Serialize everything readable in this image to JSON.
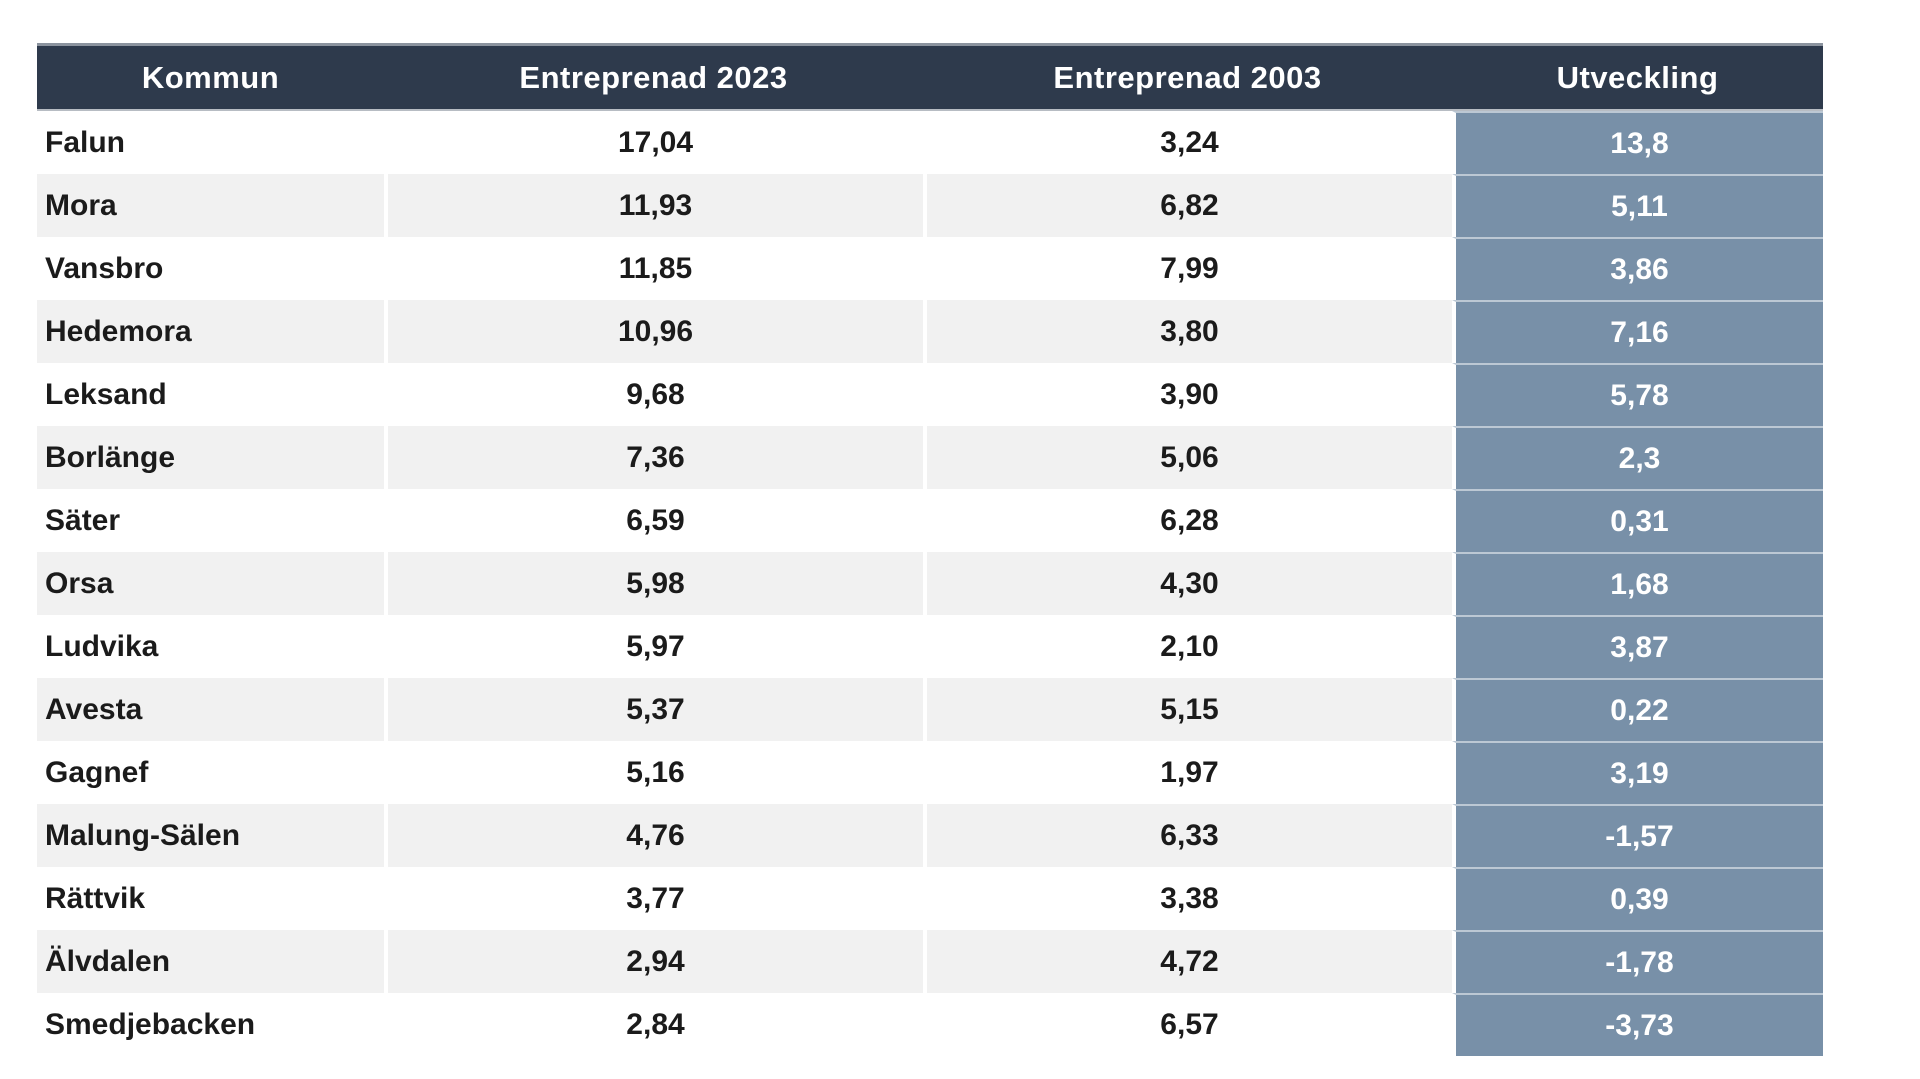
{
  "table": {
    "columns": [
      "Kommun",
      "Entreprenad 2023",
      "Entreprenad 2003",
      "Utveckling"
    ],
    "rows": [
      {
        "kommun": "Falun",
        "e2023": "17,04",
        "e2003": "3,24",
        "utv": "13,8"
      },
      {
        "kommun": "Mora",
        "e2023": "11,93",
        "e2003": "6,82",
        "utv": "5,11"
      },
      {
        "kommun": "Vansbro",
        "e2023": "11,85",
        "e2003": "7,99",
        "utv": "3,86"
      },
      {
        "kommun": "Hedemora",
        "e2023": "10,96",
        "e2003": "3,80",
        "utv": "7,16"
      },
      {
        "kommun": "Leksand",
        "e2023": "9,68",
        "e2003": "3,90",
        "utv": "5,78"
      },
      {
        "kommun": "Borlänge",
        "e2023": "7,36",
        "e2003": "5,06",
        "utv": "2,3"
      },
      {
        "kommun": "Säter",
        "e2023": "6,59",
        "e2003": "6,28",
        "utv": "0,31"
      },
      {
        "kommun": "Orsa",
        "e2023": "5,98",
        "e2003": "4,30",
        "utv": "1,68"
      },
      {
        "kommun": "Ludvika",
        "e2023": "5,97",
        "e2003": "2,10",
        "utv": "3,87"
      },
      {
        "kommun": "Avesta",
        "e2023": "5,37",
        "e2003": "5,15",
        "utv": "0,22"
      },
      {
        "kommun": "Gagnef",
        "e2023": "5,16",
        "e2003": "1,97",
        "utv": "3,19"
      },
      {
        "kommun": "Malung-Sälen",
        "e2023": "4,76",
        "e2003": "6,33",
        "utv": "-1,57"
      },
      {
        "kommun": "Rättvik",
        "e2023": "3,77",
        "e2003": "3,38",
        "utv": "0,39"
      },
      {
        "kommun": "Älvdalen",
        "e2023": "2,94",
        "e2003": "4,72",
        "utv": "-1,78"
      },
      {
        "kommun": "Smedjebacken",
        "e2023": "2,84",
        "e2003": "6,57",
        "utv": "-3,73"
      }
    ]
  },
  "colors": {
    "header_background": "#2E3A4C",
    "header_text": "#ffffff",
    "utveckling_background": "#7890A8",
    "utveckling_text": "#ffffff",
    "stripe_row_background": "#F1F1F1",
    "body_text": "#1b1b1b"
  }
}
